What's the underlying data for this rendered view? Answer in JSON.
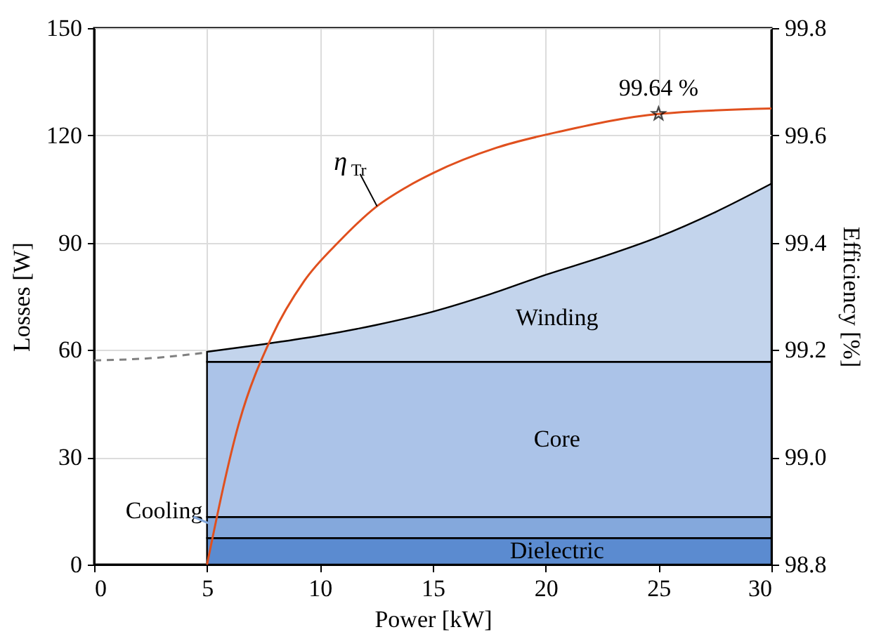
{
  "chart_data": {
    "type": "area",
    "stacked": true,
    "xlabel": "Power [kW]",
    "ylabel": "Losses [W]",
    "y2label": "Efficiency [%]",
    "x": [
      5,
      7.5,
      10,
      12.5,
      15,
      17.5,
      20,
      22.5,
      25,
      27.5,
      30
    ],
    "series": [
      {
        "name": "Dielectric",
        "color": "#5b8bd0",
        "values": [
          7.4,
          7.4,
          7.4,
          7.4,
          7.4,
          7.4,
          7.4,
          7.4,
          7.4,
          7.4,
          7.4
        ]
      },
      {
        "name": "Cooling",
        "color": "#84a8dc",
        "values": [
          5.9,
          5.9,
          5.9,
          5.9,
          5.9,
          5.9,
          5.9,
          5.9,
          5.9,
          5.9,
          5.9
        ]
      },
      {
        "name": "Core",
        "color": "#abc3e8",
        "values": [
          43.4,
          43.4,
          43.4,
          43.4,
          43.4,
          43.4,
          43.4,
          43.4,
          43.4,
          43.4,
          43.4
        ]
      },
      {
        "name": "Winding",
        "color": "#c3d4ec",
        "values": [
          2.8,
          4.9,
          7.3,
          10.3,
          14.0,
          18.8,
          24.3,
          29.3,
          34.9,
          41.8,
          49.8
        ]
      },
      {
        "type": "line",
        "color": "#808080",
        "line_style": "dashed",
        "x": [
          0,
          2.5,
          5
        ],
        "values": [
          57.1,
          57.7,
          59.3
        ]
      },
      {
        "type": "line",
        "name": "η$_{Tr}$",
        "color": "#e0501e",
        "axis": "y2",
        "x": [
          5,
          6.41,
          7.86,
          9.31,
          10.87,
          12.53,
          13.77,
          15.02,
          17.82,
          20.72,
          25,
          30
        ],
        "values": [
          98.8,
          99.063,
          99.224,
          99.329,
          99.403,
          99.468,
          99.502,
          99.53,
          99.577,
          99.608,
          99.64,
          99.65
        ]
      }
    ],
    "annotations": [
      "99.64 %"
    ],
    "xlim": [
      0,
      30
    ],
    "xticks": [
      0,
      5,
      10,
      15,
      20,
      25,
      30
    ],
    "ylim": [
      0,
      150
    ],
    "yticks": [
      0,
      30,
      60,
      90,
      120,
      150
    ],
    "y2lim": [
      98.8,
      99.8
    ],
    "y2ticks": [
      {
        "value": 98.8,
        "label": "98.8"
      },
      {
        "value": 99,
        "label": "99.0"
      },
      {
        "value": 99.2,
        "label": "99.2"
      },
      {
        "value": 99.4,
        "label": "99.4"
      },
      {
        "value": 99.6,
        "label": "99.6"
      },
      {
        "value": 99.8,
        "label": "99.8"
      }
    ],
    "grid": true
  }
}
